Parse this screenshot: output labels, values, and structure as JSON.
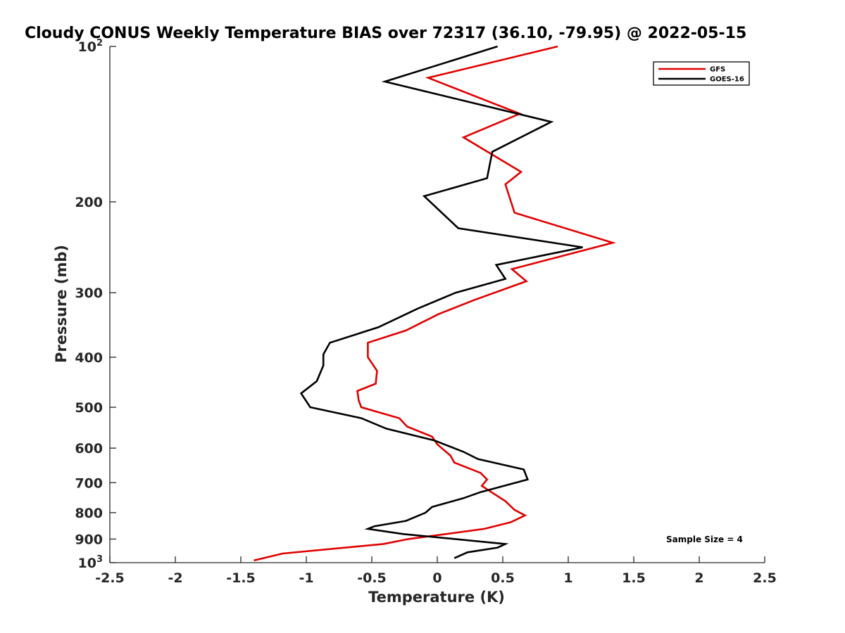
{
  "chart_data": {
    "type": "line",
    "title": "Cloudy CONUS Weekly Temperature BIAS over 72317 (36.10, -79.95) @ 2022-05-15",
    "xlabel": "Temperature (K)",
    "ylabel": "Pressure (mb)",
    "xlim": [
      -2.5,
      2.5
    ],
    "ylim": [
      100,
      1000
    ],
    "y_scale": "log",
    "y_reversed": true,
    "x_ticks": [
      -2.5,
      -2,
      -1.5,
      -1,
      -0.5,
      0,
      0.5,
      1,
      1.5,
      2,
      2.5
    ],
    "x_tick_labels": [
      "-2.5",
      "-2",
      "-1.5",
      "-1",
      "-0.5",
      "0",
      "0.5",
      "1",
      "1.5",
      "2",
      "2.5"
    ],
    "y_ticks": [
      100,
      200,
      300,
      400,
      500,
      600,
      700,
      800,
      900,
      1000
    ],
    "y_tick_labels": [
      {
        "base": "10",
        "sup": "2"
      },
      {
        "base": "200",
        "sup": ""
      },
      {
        "base": "300",
        "sup": ""
      },
      {
        "base": "400",
        "sup": ""
      },
      {
        "base": "500",
        "sup": ""
      },
      {
        "base": "600",
        "sup": ""
      },
      {
        "base": "700",
        "sup": ""
      },
      {
        "base": "800",
        "sup": ""
      },
      {
        "base": "900",
        "sup": ""
      },
      {
        "base": "10",
        "sup": "3"
      }
    ],
    "grid": false,
    "legend_position": "top-right",
    "annotation": "Sample Size = 4",
    "series": [
      {
        "name": "GFS",
        "color": "#e00000",
        "points": [
          [
            0.92,
            100
          ],
          [
            -0.07,
            115
          ],
          [
            0.63,
            135
          ],
          [
            0.2,
            150
          ],
          [
            0.64,
            175
          ],
          [
            0.52,
            185
          ],
          [
            0.59,
            210
          ],
          [
            1.34,
            240
          ],
          [
            0.57,
            270
          ],
          [
            0.68,
            285
          ],
          [
            0.28,
            310
          ],
          [
            0.01,
            330
          ],
          [
            -0.24,
            355
          ],
          [
            -0.53,
            375
          ],
          [
            -0.53,
            400
          ],
          [
            -0.46,
            425
          ],
          [
            -0.47,
            450
          ],
          [
            -0.61,
            465
          ],
          [
            -0.6,
            485
          ],
          [
            -0.58,
            500
          ],
          [
            -0.29,
            525
          ],
          [
            -0.23,
            545
          ],
          [
            -0.04,
            570
          ],
          [
            0.0,
            590
          ],
          [
            0.1,
            620
          ],
          [
            0.13,
            640
          ],
          [
            0.33,
            670
          ],
          [
            0.38,
            690
          ],
          [
            0.34,
            710
          ],
          [
            0.52,
            760
          ],
          [
            0.59,
            790
          ],
          [
            0.67,
            810
          ],
          [
            0.56,
            835
          ],
          [
            0.36,
            860
          ],
          [
            -0.22,
            900
          ],
          [
            -0.41,
            920
          ],
          [
            -1.18,
            960
          ],
          [
            -1.4,
            990
          ]
        ]
      },
      {
        "name": "GOES-16",
        "color": "#000000",
        "points": [
          [
            0.46,
            100
          ],
          [
            -0.4,
            117
          ],
          [
            0.87,
            140
          ],
          [
            0.42,
            160
          ],
          [
            0.38,
            180
          ],
          [
            -0.1,
            195
          ],
          [
            0.16,
            225
          ],
          [
            1.11,
            245
          ],
          [
            0.45,
            265
          ],
          [
            0.52,
            282
          ],
          [
            0.14,
            300
          ],
          [
            -0.15,
            322
          ],
          [
            -0.45,
            350
          ],
          [
            -0.82,
            375
          ],
          [
            -0.87,
            395
          ],
          [
            -0.87,
            415
          ],
          [
            -0.92,
            445
          ],
          [
            -1.04,
            470
          ],
          [
            -0.97,
            500
          ],
          [
            -0.58,
            525
          ],
          [
            -0.39,
            550
          ],
          [
            -0.02,
            580
          ],
          [
            0.2,
            610
          ],
          [
            0.31,
            630
          ],
          [
            0.66,
            660
          ],
          [
            0.69,
            690
          ],
          [
            0.33,
            730
          ],
          [
            0.2,
            750
          ],
          [
            -0.04,
            780
          ],
          [
            -0.09,
            800
          ],
          [
            -0.24,
            830
          ],
          [
            -0.48,
            850
          ],
          [
            -0.53,
            860
          ],
          [
            -0.26,
            880
          ],
          [
            0.52,
            920
          ],
          [
            0.46,
            935
          ],
          [
            0.23,
            955
          ],
          [
            0.13,
            980
          ]
        ]
      }
    ]
  }
}
